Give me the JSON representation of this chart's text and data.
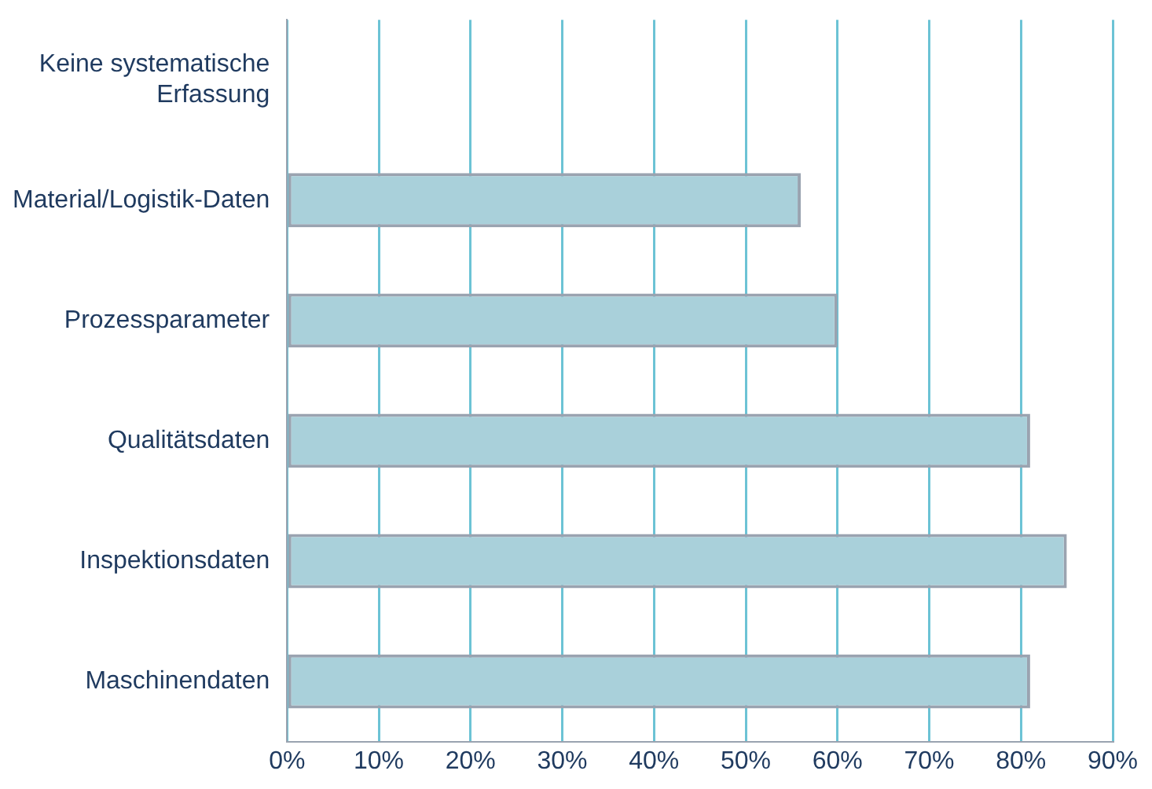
{
  "chart_data": {
    "type": "bar",
    "orientation": "horizontal",
    "categories": [
      "Keine systematische Erfassung",
      "Material/Logistik-Daten",
      "Prozessparameter",
      "Qualitätsdaten",
      "Inspektionsdaten",
      "Maschinendaten"
    ],
    "values": [
      0,
      56,
      60,
      81,
      85,
      81
    ],
    "color": "#a9d0da",
    "xlim": [
      0,
      90
    ],
    "xticks": [
      {
        "value": 0,
        "label": "0%"
      },
      {
        "value": 10,
        "label": "10%"
      },
      {
        "value": 20,
        "label": "20%"
      },
      {
        "value": 30,
        "label": "30%"
      },
      {
        "value": 40,
        "label": "40%"
      },
      {
        "value": 50,
        "label": "50%"
      },
      {
        "value": 60,
        "label": "60%"
      },
      {
        "value": 70,
        "label": "70%"
      },
      {
        "value": 80,
        "label": "80%"
      },
      {
        "value": 90,
        "label": "90%"
      }
    ],
    "grid": "x",
    "legend": false
  }
}
